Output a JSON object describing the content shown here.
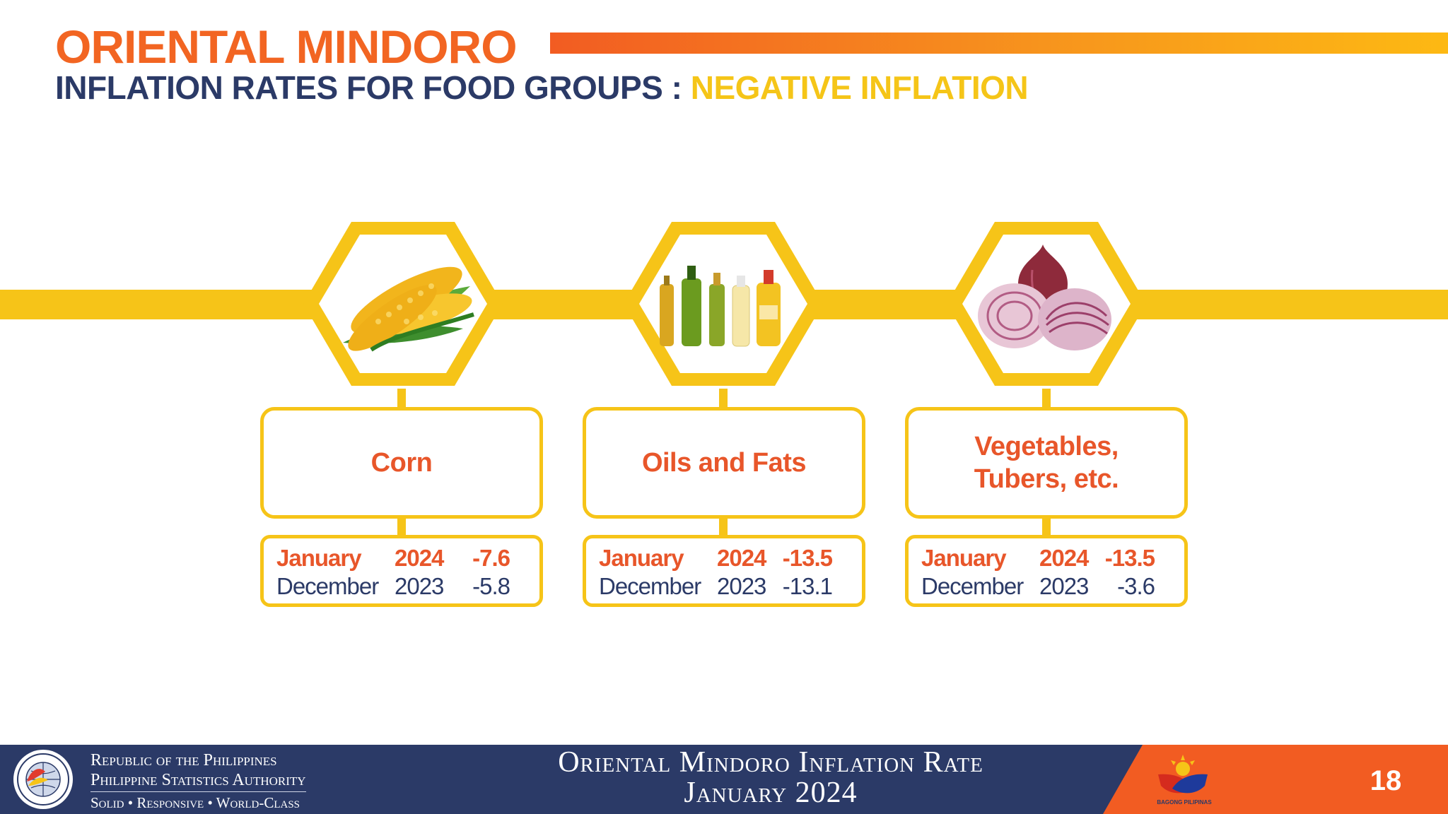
{
  "header": {
    "title": "ORIENTAL MINDORO",
    "subtitle_main": "INFLATION RATES FOR FOOD GROUPS : ",
    "subtitle_highlight": "NEGATIVE INFLATION"
  },
  "groups": [
    {
      "label": "Corn",
      "icon": "corn-icon",
      "rows": [
        {
          "month": "January",
          "year": "2024",
          "value": "-7.6"
        },
        {
          "month": "December",
          "year": "2023",
          "value": "-5.8"
        }
      ]
    },
    {
      "label": "Oils and Fats",
      "icon": "oil-bottles-icon",
      "rows": [
        {
          "month": "January",
          "year": "2024",
          "value": "-13.5"
        },
        {
          "month": "December",
          "year": "2023",
          "value": "-13.1"
        }
      ]
    },
    {
      "label": "Vegetables,\nTubers, etc.",
      "icon": "onion-icon",
      "rows": [
        {
          "month": "January",
          "year": "2024",
          "value": "-13.5"
        },
        {
          "month": "December",
          "year": "2023",
          "value": "-3.6"
        }
      ]
    }
  ],
  "footer": {
    "org_line1": "Republic of the Philippines",
    "org_line2": "Philippine Statistics Authority",
    "org_line3": "Solid • Responsive • World-Class",
    "center_line1": "Oriental Mindoro Inflation Rate",
    "center_line2": "January 2024",
    "page_number": "18",
    "logo_text": "BAGONG PILIPINAS"
  },
  "colors": {
    "orange": "#F26522",
    "navy": "#2B3A67",
    "yellow": "#F6C418"
  }
}
